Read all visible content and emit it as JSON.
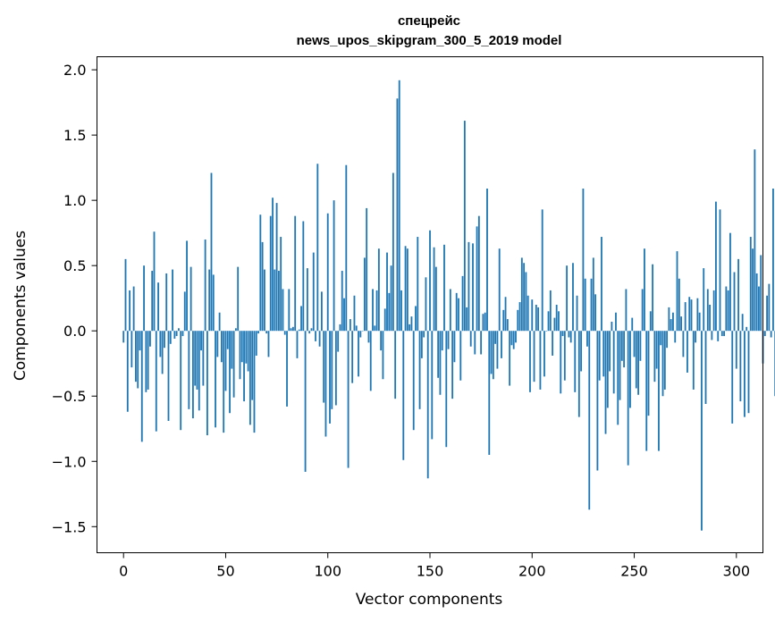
{
  "chart_data": {
    "type": "bar",
    "title": "спецрейс",
    "subtitle": "news_upos_skipgram_300_5_2019 model",
    "xlabel": "Vector components",
    "ylabel": "Components values",
    "xlim": [
      -13,
      313
    ],
    "ylim": [
      -1.7,
      2.1
    ],
    "x_ticks": [
      0,
      50,
      100,
      150,
      200,
      250,
      300
    ],
    "y_ticks": [
      -1.5,
      -1.0,
      -0.5,
      0.0,
      0.5,
      1.0,
      1.5,
      2.0
    ],
    "x_tick_labels": [
      "0",
      "50",
      "100",
      "150",
      "200",
      "250",
      "300"
    ],
    "y_tick_labels": [
      "−1.5",
      "−1.0",
      "−0.5",
      "0.0",
      "0.5",
      "1.0",
      "1.5",
      "2.0"
    ],
    "grid": false,
    "bar_color": "#1f77b4",
    "values": [
      -0.09,
      0.55,
      -0.62,
      0.31,
      -0.28,
      0.34,
      -0.39,
      -0.44,
      -0.15,
      -0.85,
      0.5,
      -0.47,
      -0.45,
      -0.12,
      0.46,
      0.76,
      -0.77,
      0.37,
      -0.2,
      -0.33,
      -0.13,
      0.44,
      -0.69,
      -0.1,
      0.47,
      -0.06,
      -0.04,
      0.02,
      -0.76,
      -0.04,
      0.3,
      0.69,
      -0.6,
      0.49,
      -0.67,
      -0.42,
      -0.45,
      -0.61,
      -0.15,
      -0.42,
      0.7,
      -0.8,
      0.47,
      1.21,
      0.43,
      -0.74,
      -0.2,
      0.14,
      -0.24,
      -0.78,
      -0.46,
      -0.14,
      -0.63,
      -0.29,
      -0.51,
      0.02,
      0.49,
      -0.37,
      -0.24,
      -0.54,
      -0.25,
      -0.31,
      -0.72,
      -0.53,
      -0.78,
      -0.19,
      -0.02,
      0.89,
      0.68,
      0.47,
      -0.02,
      -0.2,
      0.88,
      1.02,
      0.47,
      0.98,
      0.46,
      0.72,
      0.32,
      -0.03,
      -0.58,
      0.32,
      0.02,
      0.03,
      0.88,
      -0.21,
      0.01,
      0.19,
      0.84,
      -1.08,
      0.48,
      -0.02,
      0.02,
      0.6,
      -0.08,
      1.28,
      -0.12,
      0.3,
      -0.55,
      -0.81,
      0.9,
      -0.71,
      -0.6,
      1.0,
      -0.57,
      -0.16,
      0.05,
      0.46,
      0.25,
      1.27,
      -1.05,
      0.09,
      -0.4,
      0.27,
      0.04,
      -0.35,
      -0.05,
      0.0,
      0.56,
      0.94,
      -0.09,
      -0.46,
      0.32,
      0.04,
      0.31,
      0.63,
      -0.15,
      -0.37,
      0.17,
      0.6,
      0.29,
      0.5,
      1.21,
      -0.52,
      1.78,
      1.92,
      0.31,
      -0.99,
      0.65,
      0.63,
      0.05,
      0.11,
      -0.76,
      0.19,
      0.72,
      -0.6,
      -0.21,
      -0.05,
      0.41,
      -1.13,
      0.77,
      -0.83,
      0.64,
      0.49,
      -0.36,
      -0.49,
      -0.15,
      0.66,
      -0.89,
      -0.14,
      0.32,
      -0.52,
      -0.24,
      0.29,
      0.25,
      -0.38,
      0.42,
      1.61,
      0.18,
      0.68,
      -0.12,
      0.67,
      -0.18,
      0.8,
      0.88,
      -0.18,
      0.13,
      0.14,
      1.09,
      -0.95,
      -0.33,
      -0.37,
      -0.1,
      -0.29,
      0.63,
      -0.21,
      0.16,
      0.26,
      0.09,
      -0.42,
      -0.11,
      -0.14,
      -0.09,
      0.16,
      0.22,
      0.56,
      0.52,
      0.45,
      0.27,
      -0.47,
      0.24,
      -0.39,
      0.2,
      0.18,
      -0.45,
      0.93,
      -0.35,
      0.0,
      0.15,
      0.31,
      -0.19,
      0.1,
      0.2,
      0.15,
      -0.48,
      -0.04,
      -0.38,
      0.5,
      -0.05,
      -0.09,
      0.52,
      -0.47,
      0.27,
      -0.66,
      -0.31,
      1.09,
      0.4,
      -0.12,
      -1.37,
      0.4,
      0.56,
      0.28,
      -1.07,
      -0.38,
      0.72,
      -0.35,
      -0.79,
      -0.59,
      -0.31,
      0.07,
      -0.48,
      0.14,
      -0.72,
      -0.53,
      -0.23,
      -0.28,
      0.32,
      -1.03,
      -0.59,
      0.1,
      -0.2,
      -0.44,
      -0.49,
      -0.23,
      0.32,
      0.63,
      -0.92,
      -0.65,
      0.15,
      0.51,
      -0.39,
      -0.29,
      -0.92,
      -0.11,
      -0.5,
      -0.45,
      -0.13,
      0.18,
      0.09,
      0.14,
      -0.09,
      0.61,
      0.4,
      0.11,
      -0.2,
      0.22,
      -0.32,
      0.26,
      0.24,
      -0.45,
      -0.09,
      0.25,
      0.14,
      -1.53,
      0.48,
      -0.56,
      0.32,
      0.2,
      -0.07,
      0.31,
      0.99,
      -0.08,
      0.93,
      -0.04,
      -0.04,
      0.34,
      0.31,
      0.75,
      -0.71,
      0.45,
      -0.29,
      0.55,
      -0.54,
      0.13,
      -0.66,
      0.03,
      -0.63,
      0.72,
      0.63,
      1.39,
      0.44,
      0.34,
      0.58,
      -0.25,
      -0.04,
      0.27,
      0.36,
      -0.05,
      1.09,
      -0.5
    ]
  }
}
